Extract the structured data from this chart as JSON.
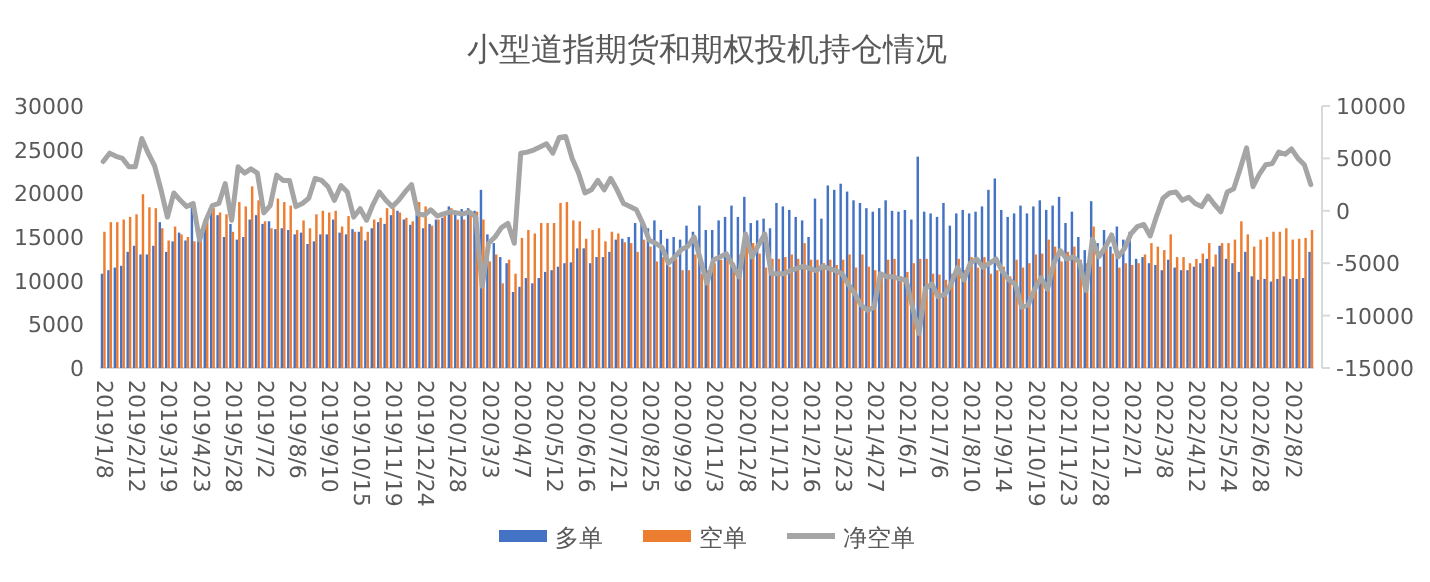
{
  "chart_data": {
    "type": "bar",
    "title": "小型道指期货和期权投机持仓情况",
    "categories": [
      "2019/1/8",
      null,
      null,
      null,
      null,
      "2019/2/12",
      null,
      null,
      null,
      null,
      "2019/3/19",
      null,
      null,
      null,
      null,
      "2019/4/23",
      null,
      null,
      null,
      null,
      "2019/5/28",
      null,
      null,
      null,
      null,
      "2019/7/2",
      null,
      null,
      null,
      null,
      "2019/8/6",
      null,
      null,
      null,
      null,
      "2019/9/10",
      null,
      null,
      null,
      null,
      "2019/10/15",
      null,
      null,
      null,
      null,
      "2019/11/19",
      null,
      null,
      null,
      null,
      "2019/12/24",
      null,
      null,
      null,
      null,
      "2020/1/28",
      null,
      null,
      null,
      null,
      "2020/3/3",
      null,
      null,
      null,
      null,
      "2020/4/7",
      null,
      null,
      null,
      null,
      "2020/5/12",
      null,
      null,
      null,
      null,
      "2020/6/16",
      null,
      null,
      null,
      null,
      "2020/7/21",
      null,
      null,
      null,
      null,
      "2020/8/25",
      null,
      null,
      null,
      null,
      "2020/9/29",
      null,
      null,
      null,
      null,
      "2020/11/3",
      null,
      null,
      null,
      null,
      "2020/12/8",
      null,
      null,
      null,
      null,
      "2021/1/12",
      null,
      null,
      null,
      null,
      "2021/2/16",
      null,
      null,
      null,
      null,
      "2021/3/23",
      null,
      null,
      null,
      null,
      "2021/4/27",
      null,
      null,
      null,
      null,
      "2021/6/1",
      null,
      null,
      null,
      null,
      "2021/7/6",
      null,
      null,
      null,
      null,
      "2021/8/10",
      null,
      null,
      null,
      null,
      "2021/9/14",
      null,
      null,
      null,
      null,
      "2021/10/19",
      null,
      null,
      null,
      null,
      "2021/11/23",
      null,
      null,
      null,
      null,
      "2021/12/28",
      null,
      null,
      null,
      null,
      "2022/2/1",
      null,
      null,
      null,
      null,
      "2022/3/8",
      null,
      null,
      null,
      null,
      "2022/4/12",
      null,
      null,
      null,
      null,
      "2022/5/24",
      null,
      null,
      null,
      null,
      "2022/6/28",
      null,
      null,
      null,
      null,
      "2022/8/2",
      null,
      null,
      null
    ],
    "series": [
      {
        "name": "多单",
        "type": "bar",
        "color": "#4472c4",
        "values": [
          10800,
          11200,
          11500,
          11700,
          13300,
          14000,
          13000,
          13000,
          14000,
          16700,
          13300,
          14500,
          15500,
          14600,
          18500,
          14600,
          16800,
          18000,
          17500,
          15000,
          16500,
          14700,
          15000,
          17000,
          17500,
          16500,
          16800,
          15900,
          16000,
          15800,
          15300,
          15500,
          14200,
          14500,
          15300,
          15300,
          17000,
          15500,
          15300,
          15900,
          15600,
          14600,
          16000,
          16700,
          16500,
          17500,
          18000,
          17000,
          16400,
          17600,
          16000,
          16500,
          17000,
          17200,
          18500,
          18000,
          18200,
          18300,
          18000,
          20400,
          15300,
          14300,
          12700,
          12000,
          8700,
          9300,
          10300,
          9700,
          10300,
          11000,
          11200,
          11600,
          12000,
          12100,
          13700,
          13700,
          12000,
          12700,
          12700,
          13300,
          14700,
          14800,
          15000,
          16600,
          16600,
          16000,
          16900,
          15800,
          14800,
          15000,
          14700,
          16300,
          15600,
          18600,
          15800,
          15800,
          16900,
          17300,
          18600,
          17300,
          19600,
          16600,
          16900,
          17100,
          16000,
          18900,
          18500,
          18100,
          17300,
          16900,
          15000,
          19400,
          17100,
          20900,
          20400,
          21100,
          20200,
          19200,
          18900,
          18300,
          17900,
          18300,
          19200,
          18000,
          17900,
          18100,
          17000,
          24200,
          17900,
          17700,
          17300,
          18900,
          16300,
          17700,
          18100,
          17700,
          17900,
          18500,
          20400,
          21700,
          18100,
          17300,
          17700,
          18600,
          17700,
          18500,
          19200,
          18100,
          18600,
          19600,
          16600,
          17900,
          15000,
          13500,
          19100,
          14300,
          15800,
          13900,
          16200,
          14700,
          15600,
          12500,
          12700,
          12000,
          11800,
          11200,
          12400,
          11500,
          11200,
          11200,
          11600,
          12000,
          12500,
          11600,
          14000,
          12500,
          12000,
          11000,
          13300,
          10500,
          10100,
          10200,
          9900,
          10200,
          10500,
          10200,
          10200,
          10300,
          13300
        ]
      },
      {
        "name": "空单",
        "type": "bar",
        "color": "#ed7d31",
        "values": [
          15600,
          16700,
          16700,
          17000,
          17300,
          17600,
          19900,
          18400,
          18300,
          16000,
          14600,
          16200,
          15300,
          15000,
          14500,
          15300,
          17000,
          18300,
          17800,
          17600,
          15600,
          19000,
          18500,
          20800,
          19200,
          16800,
          16000,
          19400,
          19000,
          18600,
          15800,
          16900,
          16000,
          17600,
          18000,
          17800,
          18000,
          16200,
          17400,
          15600,
          16200,
          15600,
          17000,
          17200,
          18300,
          18300,
          17800,
          17200,
          16800,
          19000,
          18500,
          16300,
          17000,
          17400,
          18300,
          17000,
          17000,
          17500,
          17900,
          17000,
          12200,
          13000,
          9700,
          12400,
          10800,
          14900,
          15800,
          15400,
          16600,
          16600,
          16600,
          18900,
          19000,
          16900,
          16800,
          14800,
          15800,
          16000,
          14500,
          15600,
          15400,
          14400,
          14300,
          13300,
          14700,
          13900,
          12200,
          12700,
          11600,
          12500,
          11200,
          11200,
          13000,
          10800,
          11200,
          12000,
          12400,
          13100,
          12000,
          13000,
          14700,
          14300,
          13100,
          11500,
          12500,
          12500,
          12700,
          13000,
          12500,
          14300,
          12400,
          12400,
          12000,
          12400,
          11800,
          12400,
          13000,
          11500,
          13000,
          11600,
          11200,
          10800,
          12400,
          12500,
          10500,
          11000,
          12000,
          12500,
          12500,
          10800,
          10700,
          10100,
          10800,
          12500,
          11200,
          12700,
          11500,
          12700,
          10800,
          11200,
          11600,
          10500,
          12400,
          11500,
          12000,
          13000,
          13100,
          14700,
          13900,
          12200,
          13300,
          13900,
          12400,
          12000,
          16200,
          11600,
          14300,
          13100,
          11500,
          12000,
          11800,
          12000,
          13000,
          14300,
          13900,
          13500,
          15300,
          12700,
          12700,
          12000,
          12500,
          13100,
          14300,
          13000,
          14300,
          14300,
          14700,
          16800,
          15300,
          13900,
          14700,
          15000,
          15600,
          15600,
          16000,
          14700,
          14800,
          14900,
          15800
        ]
      },
      {
        "name": "净空单",
        "type": "line",
        "axis": "y2",
        "color": "#a5a5a5",
        "values": [
          4700,
          5500,
          5200,
          5000,
          4200,
          4200,
          6900,
          5500,
          4300,
          2000,
          -600,
          1700,
          1000,
          400,
          700,
          -2800,
          -900,
          500,
          700,
          2600,
          -900,
          4200,
          3600,
          4000,
          3600,
          -200,
          500,
          3400,
          2900,
          2900,
          400,
          700,
          1200,
          3100,
          2900,
          2300,
          1000,
          2400,
          1800,
          -600,
          200,
          -900,
          600,
          1800,
          1000,
          400,
          1000,
          1800,
          2500,
          -300,
          -400,
          100,
          -500,
          -300,
          -100,
          -200,
          -300,
          -100,
          -600,
          -7200,
          -3100,
          -2500,
          -1600,
          -1200,
          -3100,
          5500,
          5600,
          5800,
          6100,
          6400,
          5500,
          7000,
          7100,
          5000,
          3600,
          1700,
          2000,
          2900,
          2000,
          3100,
          2000,
          700,
          400,
          100,
          -1200,
          -2800,
          -3100,
          -3500,
          -5000,
          -4400,
          -3700,
          -3400,
          -2500,
          -4700,
          -6900,
          -4700,
          -4400,
          -4100,
          -5200,
          -6300,
          -2200,
          -4400,
          -3300,
          -2200,
          -6000,
          -6000,
          -6000,
          -5700,
          -5500,
          -5300,
          -5500,
          -5700,
          -5300,
          -5500,
          -5700,
          -6000,
          -7000,
          -7900,
          -9000,
          -9500,
          -9200,
          -6000,
          -6300,
          -6300,
          -6500,
          -6600,
          -9200,
          -11700,
          -7400,
          -7000,
          -8200,
          -8000,
          -7000,
          -5400,
          -6600,
          -5000,
          -4600,
          -5400,
          -5000,
          -4600,
          -5800,
          -6600,
          -7000,
          -9200,
          -9000,
          -7500,
          -6400,
          -7500,
          -5000,
          -3800,
          -4600,
          -4400,
          -4900,
          -7600,
          -2700,
          -4400,
          -3500,
          -2300,
          -4400,
          -3600,
          -2200,
          -1500,
          -1300,
          -2400,
          -500,
          1200,
          1700,
          1800,
          1000,
          1300,
          700,
          400,
          1400,
          600,
          -100,
          1800,
          2100,
          4000,
          6000,
          2300,
          3500,
          4400,
          4500,
          5600,
          5400,
          5900,
          5000,
          4400,
          2500
        ]
      }
    ],
    "ylim": [
      0,
      30000
    ],
    "yticks": [
      0,
      5000,
      10000,
      15000,
      20000,
      25000,
      30000
    ],
    "y2lim": [
      -15000,
      10000
    ],
    "y2ticks": [
      -15000,
      -10000,
      -5000,
      0,
      5000,
      10000
    ],
    "legend": "bottom"
  }
}
